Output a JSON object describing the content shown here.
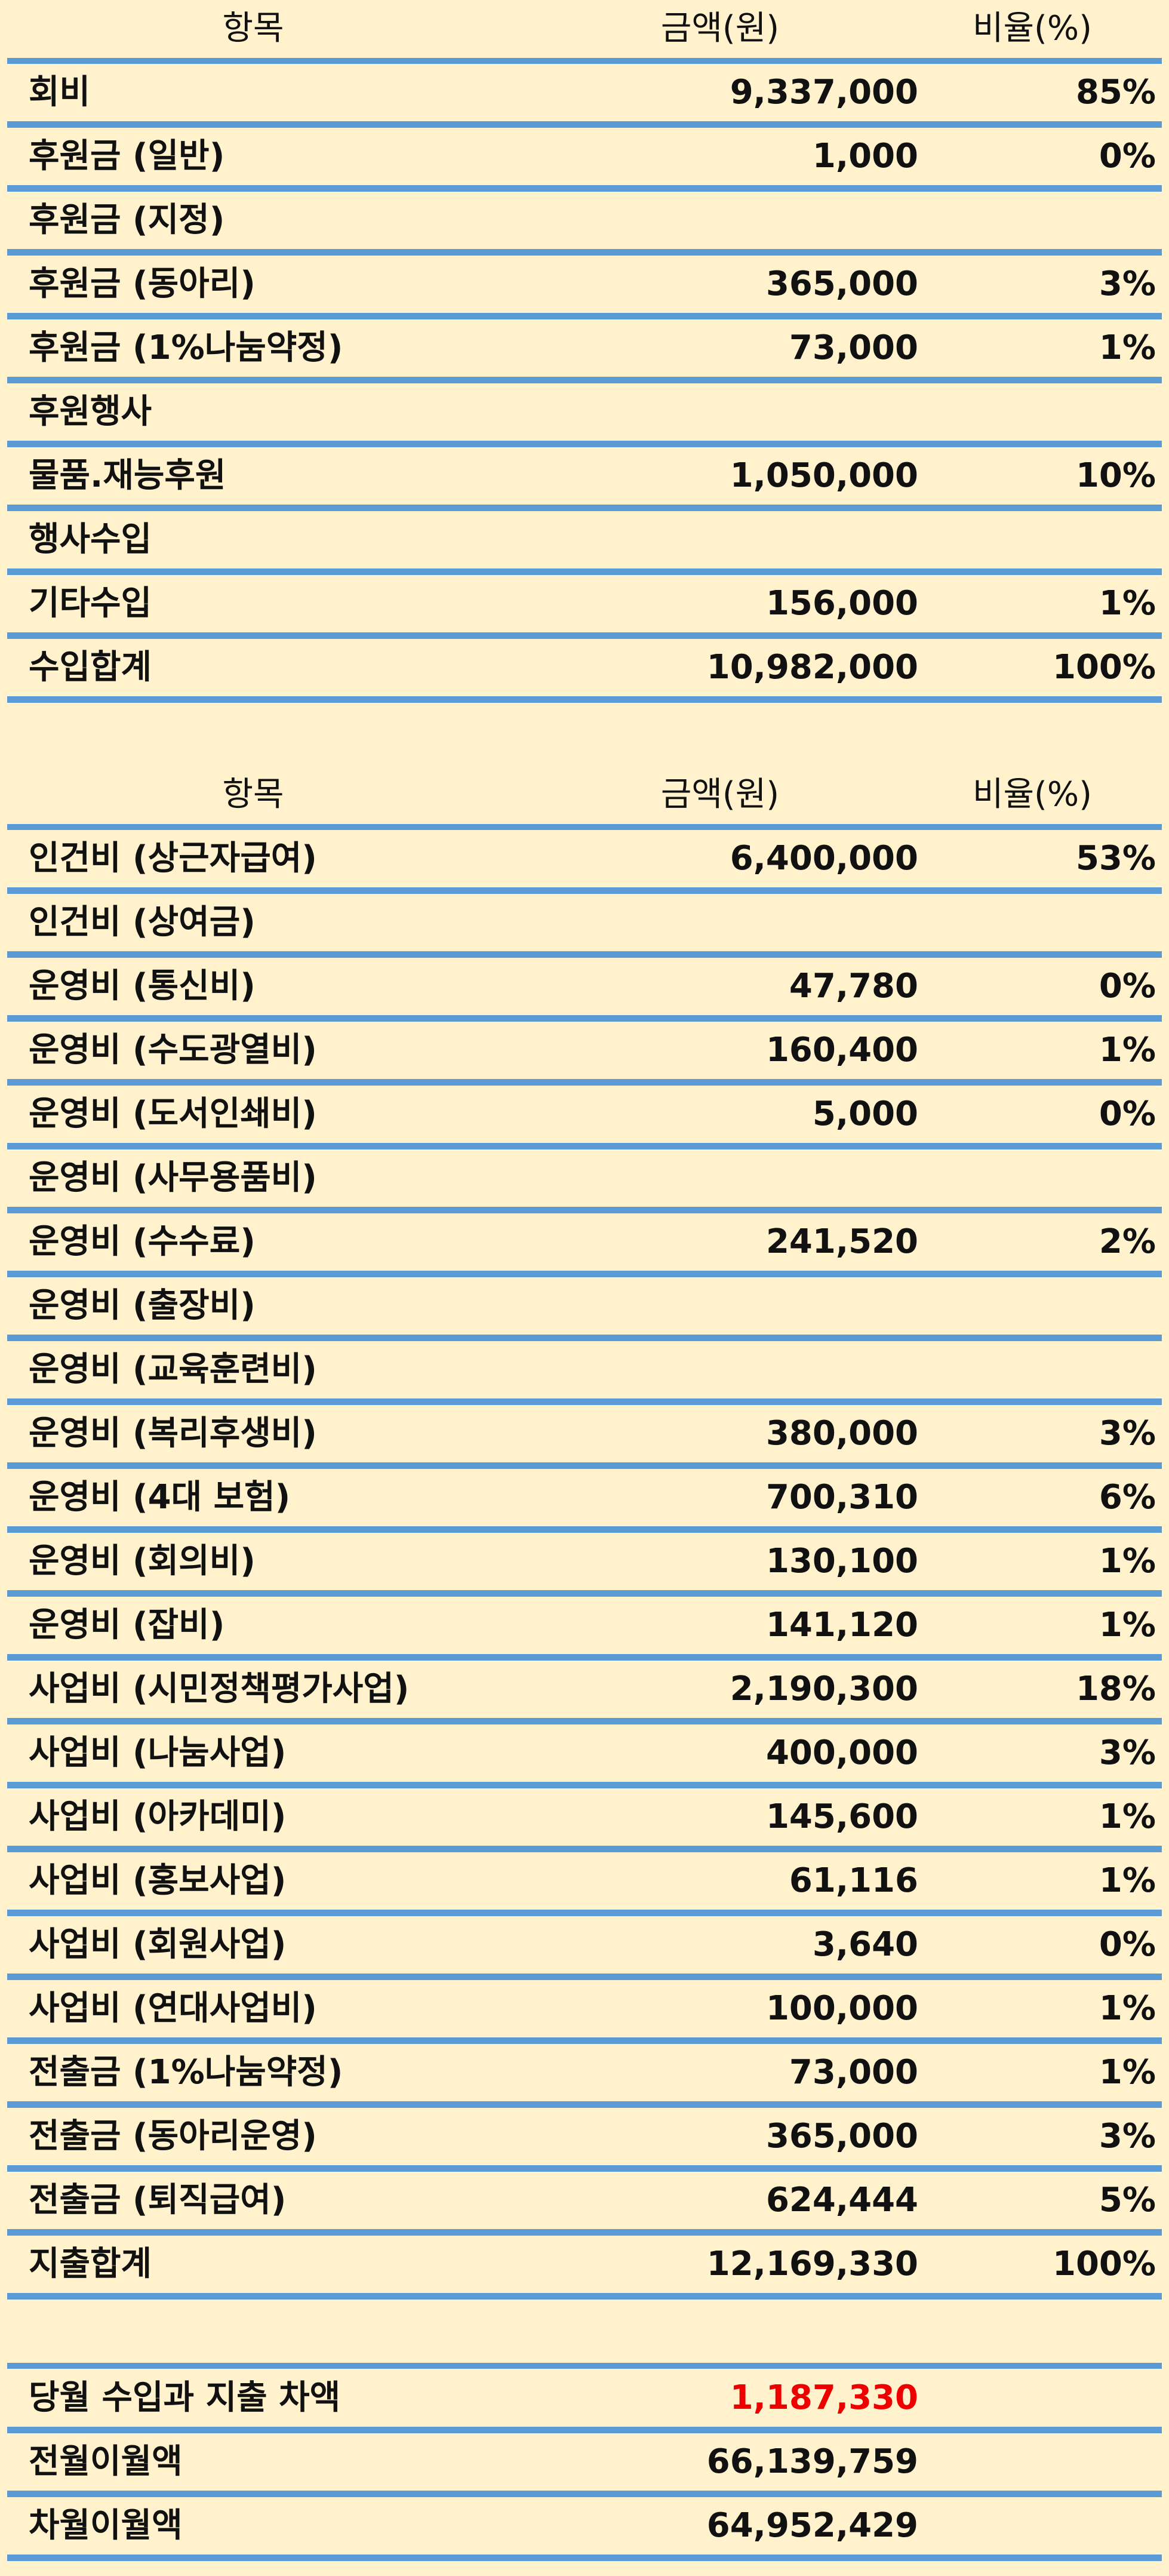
{
  "income_table": {
    "headers": {
      "item": "항목",
      "amount": "금액(원)",
      "ratio": "비율(%)"
    },
    "rows": [
      {
        "item": "회비",
        "amount": "9,337,000",
        "ratio": "85%"
      },
      {
        "item": "후원금 (일반)",
        "amount": "1,000",
        "ratio": "0%"
      },
      {
        "item": "후원금 (지정)",
        "amount": "",
        "ratio": ""
      },
      {
        "item": "후원금 (동아리)",
        "amount": "365,000",
        "ratio": "3%"
      },
      {
        "item": "후원금 (1%나눔약정)",
        "amount": "73,000",
        "ratio": "1%"
      },
      {
        "item": "후원행사",
        "amount": "",
        "ratio": ""
      },
      {
        "item": "물품.재능후원",
        "amount": "1,050,000",
        "ratio": "10%"
      },
      {
        "item": "행사수입",
        "amount": "",
        "ratio": ""
      },
      {
        "item": "기타수입",
        "amount": "156,000",
        "ratio": "1%"
      },
      {
        "item": "수입합계",
        "amount": "10,982,000",
        "ratio": "100%"
      }
    ]
  },
  "expense_table": {
    "headers": {
      "item": "항목",
      "amount": "금액(원)",
      "ratio": "비율(%)"
    },
    "rows": [
      {
        "item": "인건비 (상근자급여)",
        "amount": "6,400,000",
        "ratio": "53%"
      },
      {
        "item": "인건비 (상여금)",
        "amount": "",
        "ratio": ""
      },
      {
        "item": "운영비 (통신비)",
        "amount": "47,780",
        "ratio": "0%"
      },
      {
        "item": "운영비 (수도광열비)",
        "amount": "160,400",
        "ratio": "1%"
      },
      {
        "item": "운영비 (도서인쇄비)",
        "amount": "5,000",
        "ratio": "0%"
      },
      {
        "item": "운영비 (사무용품비)",
        "amount": "",
        "ratio": ""
      },
      {
        "item": "운영비 (수수료)",
        "amount": "241,520",
        "ratio": "2%"
      },
      {
        "item": "운영비 (출장비)",
        "amount": "",
        "ratio": ""
      },
      {
        "item": "운영비 (교육훈련비)",
        "amount": "",
        "ratio": ""
      },
      {
        "item": "운영비 (복리후생비)",
        "amount": "380,000",
        "ratio": "3%"
      },
      {
        "item": "운영비 (4대 보험)",
        "amount": "700,310",
        "ratio": "6%"
      },
      {
        "item": "운영비 (회의비)",
        "amount": "130,100",
        "ratio": "1%"
      },
      {
        "item": "운영비 (잡비)",
        "amount": "141,120",
        "ratio": "1%"
      },
      {
        "item": "사업비 (시민정책평가사업)",
        "amount": "2,190,300",
        "ratio": "18%"
      },
      {
        "item": "사업비 (나눔사업)",
        "amount": "400,000",
        "ratio": "3%"
      },
      {
        "item": "사업비 (아카데미)",
        "amount": "145,600",
        "ratio": "1%"
      },
      {
        "item": "사업비 (홍보사업)",
        "amount": "61,116",
        "ratio": "1%"
      },
      {
        "item": "사업비 (회원사업)",
        "amount": "3,640",
        "ratio": "0%"
      },
      {
        "item": "사업비 (연대사업비)",
        "amount": "100,000",
        "ratio": "1%"
      },
      {
        "item": "전출금 (1%나눔약정)",
        "amount": "73,000",
        "ratio": "1%"
      },
      {
        "item": "전출금 (동아리운영)",
        "amount": "365,000",
        "ratio": "3%"
      },
      {
        "item": "전출금 (퇴직급여)",
        "amount": "624,444",
        "ratio": "5%"
      },
      {
        "item": "지출합계",
        "amount": "12,169,330",
        "ratio": "100%"
      }
    ]
  },
  "summary_table": {
    "rows": [
      {
        "item": "당월 수입과 지출 차액",
        "amount": "1,187,330",
        "amount_color": "#ee0000"
      },
      {
        "item": "전월이월액",
        "amount": "66,139,759"
      },
      {
        "item": "차월이월액",
        "amount": "64,952,429"
      }
    ]
  },
  "colors": {
    "background": "#fff2cc",
    "rule": "#5b9bd5",
    "highlight": "#ee0000"
  }
}
